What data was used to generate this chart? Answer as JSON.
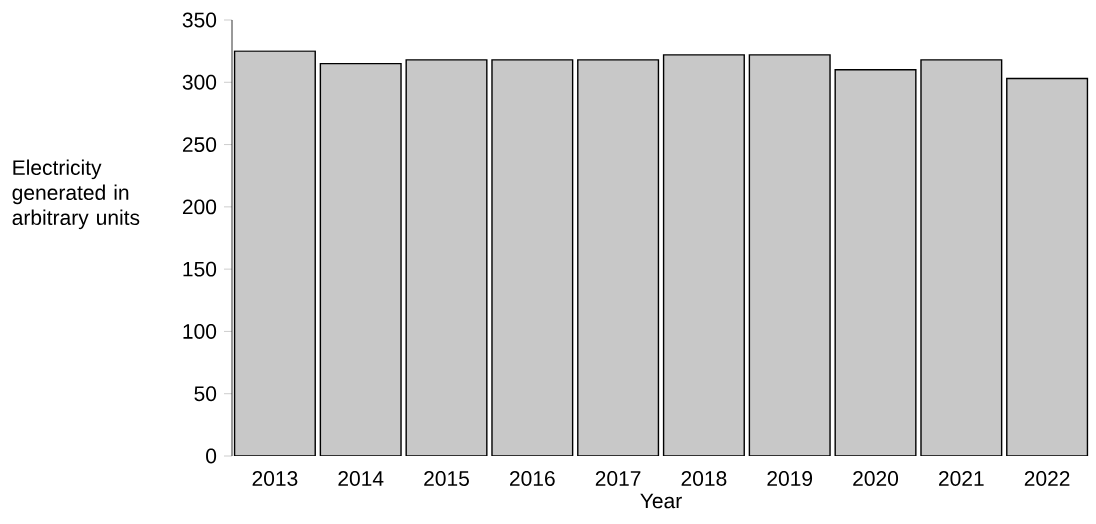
{
  "chart_data": {
    "type": "bar",
    "xlabel": "Year",
    "ylabel": "Electricity generated in arbitrary units",
    "categories": [
      "2013",
      "2014",
      "2015",
      "2016",
      "2017",
      "2018",
      "2019",
      "2020",
      "2021",
      "2022"
    ],
    "values": [
      325,
      315,
      318,
      318,
      318,
      322,
      322,
      310,
      318,
      303
    ],
    "color": "#c8c8c8",
    "ylim": [
      0,
      350
    ],
    "yticks": [
      0,
      50,
      100,
      150,
      200,
      250,
      300,
      350
    ],
    "grid": false
  }
}
